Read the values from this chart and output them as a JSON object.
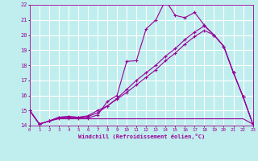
{
  "background_color": "#c0eeee",
  "grid_color": "#ffffff",
  "line_color": "#990099",
  "xlabel": "Windchill (Refroidissement éolien,°C)",
  "xlim": [
    0,
    23
  ],
  "ylim": [
    14,
    22
  ],
  "xticks": [
    0,
    1,
    2,
    3,
    4,
    5,
    6,
    7,
    8,
    9,
    10,
    11,
    12,
    13,
    14,
    15,
    16,
    17,
    18,
    19,
    20,
    21,
    22,
    23
  ],
  "yticks": [
    14,
    15,
    16,
    17,
    18,
    19,
    20,
    21,
    22
  ],
  "line1_x": [
    0,
    1,
    2,
    3,
    4,
    5,
    6,
    7,
    8,
    9,
    10,
    11,
    12,
    13,
    14,
    15,
    16,
    17,
    18,
    19,
    20,
    21,
    22,
    23
  ],
  "line1_y": [
    15.0,
    14.1,
    14.3,
    14.45,
    14.45,
    14.45,
    14.45,
    14.45,
    14.45,
    14.45,
    14.45,
    14.45,
    14.45,
    14.45,
    14.45,
    14.45,
    14.45,
    14.45,
    14.45,
    14.45,
    14.45,
    14.45,
    14.45,
    14.1
  ],
  "line2_x": [
    0,
    1,
    2,
    3,
    4,
    5,
    6,
    7,
    8,
    9,
    10,
    11,
    12,
    13,
    14,
    15,
    16,
    17,
    18,
    19,
    20,
    21,
    22,
    23
  ],
  "line2_y": [
    15.0,
    14.1,
    14.3,
    14.5,
    14.5,
    14.5,
    14.5,
    14.7,
    15.6,
    16.0,
    18.25,
    18.3,
    20.4,
    21.0,
    22.3,
    21.3,
    21.15,
    21.5,
    20.65,
    20.0,
    19.25,
    17.5,
    15.9,
    14.1
  ],
  "line3_x": [
    0,
    1,
    2,
    3,
    4,
    5,
    6,
    7,
    8,
    9,
    10,
    11,
    12,
    13,
    14,
    15,
    16,
    17,
    18,
    19,
    20,
    21,
    22,
    23
  ],
  "line3_y": [
    15.0,
    14.1,
    14.3,
    14.55,
    14.6,
    14.55,
    14.6,
    14.85,
    15.3,
    15.8,
    16.4,
    17.0,
    17.5,
    18.0,
    18.6,
    19.1,
    19.7,
    20.2,
    20.6,
    20.0,
    19.25,
    17.5,
    15.9,
    14.1
  ],
  "line4_x": [
    0,
    1,
    2,
    3,
    4,
    5,
    6,
    7,
    8,
    9,
    10,
    11,
    12,
    13,
    14,
    15,
    16,
    17,
    18,
    19,
    20,
    21,
    22,
    23
  ],
  "line4_y": [
    15.0,
    14.1,
    14.3,
    14.55,
    14.6,
    14.55,
    14.65,
    15.0,
    15.3,
    15.75,
    16.2,
    16.7,
    17.2,
    17.7,
    18.3,
    18.8,
    19.4,
    19.9,
    20.3,
    20.0,
    19.25,
    17.5,
    15.9,
    14.1
  ]
}
